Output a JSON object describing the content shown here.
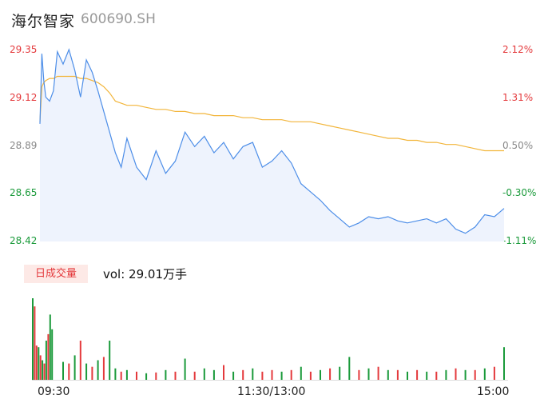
{
  "header": {
    "name": "海尔智家",
    "code": "600690.SH"
  },
  "price_axis": {
    "left_ticks": [
      "29.35",
      "29.12",
      "28.89",
      "28.65",
      "28.42"
    ],
    "right_ticks": [
      "2.12%",
      "1.31%",
      "0.50%",
      "-0.30%",
      "-1.11%"
    ],
    "tick_colors": [
      "#e4393c",
      "#e4393c",
      "#888888",
      "#1a9a3a",
      "#1a9a3a"
    ]
  },
  "volume": {
    "tag": "日成交量",
    "text": "vol: 29.01万手"
  },
  "x_ticks": [
    "09:30",
    "11:30/13:00",
    "15:00"
  ],
  "colors": {
    "price": "#4d8ee8",
    "avg": "#f2b53a",
    "up": "#e4393c",
    "down": "#1a9a3a",
    "area": "#eef3fd"
  },
  "chart_data": [
    {
      "type": "line",
      "title": "",
      "xlabel": "",
      "ylabel": "",
      "ylim": [
        28.42,
        29.35
      ],
      "x": [
        "09:30",
        "09:31",
        "09:32",
        "09:33",
        "09:35",
        "09:37",
        "09:39",
        "09:42",
        "09:45",
        "09:48",
        "09:51",
        "09:54",
        "09:57",
        "10:00",
        "10:03",
        "10:06",
        "10:09",
        "10:12",
        "10:15",
        "10:20",
        "10:25",
        "10:30",
        "10:35",
        "10:40",
        "10:45",
        "10:50",
        "10:55",
        "11:00",
        "11:05",
        "11:10",
        "11:15",
        "11:20",
        "11:25",
        "11:30",
        "13:05",
        "13:10",
        "13:15",
        "13:20",
        "13:25",
        "13:30",
        "13:35",
        "13:40",
        "13:45",
        "13:50",
        "13:55",
        "14:00",
        "14:05",
        "14:10",
        "14:15",
        "14:20",
        "14:25",
        "14:30",
        "14:35",
        "14:40",
        "14:45",
        "14:50",
        "14:55",
        "15:00"
      ],
      "series": [
        {
          "name": "",
          "values": [
            28.99,
            29.33,
            29.2,
            29.12,
            29.1,
            29.15,
            29.34,
            29.28,
            29.35,
            29.25,
            29.12,
            29.3,
            29.24,
            29.15,
            29.05,
            28.95,
            28.85,
            28.78,
            28.92,
            28.78,
            28.72,
            28.86,
            28.75,
            28.81,
            28.95,
            28.88,
            28.93,
            28.85,
            28.9,
            28.82,
            28.88,
            28.9,
            28.78,
            28.81,
            28.86,
            28.8,
            28.7,
            28.66,
            28.62,
            28.57,
            28.53,
            28.49,
            28.51,
            28.54,
            28.53,
            28.54,
            28.52,
            28.51,
            28.52,
            28.53,
            28.51,
            28.53,
            28.48,
            28.46,
            28.49,
            28.55,
            28.54,
            28.58
          ]
        },
        {
          "name": "",
          "values": [
            29.0,
            29.17,
            29.19,
            29.2,
            29.21,
            29.21,
            29.22,
            29.22,
            29.22,
            29.22,
            29.21,
            29.21,
            29.2,
            29.19,
            29.17,
            29.14,
            29.1,
            29.09,
            29.08,
            29.08,
            29.07,
            29.06,
            29.06,
            29.05,
            29.05,
            29.04,
            29.04,
            29.03,
            29.03,
            29.03,
            29.02,
            29.02,
            29.01,
            29.01,
            29.01,
            29.0,
            29.0,
            29.0,
            28.99,
            28.98,
            28.97,
            28.96,
            28.95,
            28.94,
            28.93,
            28.92,
            28.92,
            28.91,
            28.91,
            28.9,
            28.9,
            28.89,
            28.89,
            28.88,
            28.87,
            28.86,
            28.86,
            28.86
          ]
        }
      ]
    },
    {
      "type": "bar",
      "title": "",
      "xlabel": "",
      "ylabel": "",
      "categories": [
        "09:30",
        "09:31",
        "09:32",
        "09:33",
        "09:34",
        "09:35",
        "09:36",
        "09:37",
        "09:38",
        "09:39",
        "09:40",
        "09:42",
        "09:45",
        "09:48",
        "09:51",
        "09:54",
        "09:57",
        "10:00",
        "10:03",
        "10:06",
        "10:09",
        "10:12",
        "10:15",
        "10:20",
        "10:25",
        "10:30",
        "10:35",
        "10:40",
        "10:45",
        "10:50",
        "10:55",
        "11:00",
        "11:05",
        "11:10",
        "11:15",
        "11:20",
        "11:25",
        "11:30",
        "13:05",
        "13:10",
        "13:15",
        "13:20",
        "13:25",
        "13:30",
        "13:35",
        "13:40",
        "13:45",
        "13:50",
        "13:55",
        "14:00",
        "14:05",
        "14:10",
        "14:15",
        "14:20",
        "14:25",
        "14:30",
        "14:35",
        "14:40",
        "14:45",
        "14:50",
        "14:55",
        "15:00"
      ],
      "values": [
        100,
        90,
        42,
        40,
        30,
        24,
        20,
        48,
        56,
        80,
        62,
        22,
        20,
        30,
        48,
        20,
        16,
        24,
        28,
        48,
        14,
        10,
        12,
        10,
        8,
        9,
        12,
        10,
        26,
        10,
        14,
        12,
        18,
        10,
        12,
        14,
        10,
        12,
        10,
        12,
        16,
        10,
        12,
        14,
        16,
        28,
        12,
        14,
        16,
        12,
        12,
        10,
        12,
        10,
        10,
        12,
        14,
        12,
        12,
        14,
        16,
        40
      ],
      "directions": [
        "down",
        "up",
        "up",
        "down",
        "up",
        "down",
        "up",
        "down",
        "up",
        "down",
        "down",
        "down",
        "up",
        "down",
        "up",
        "down",
        "up",
        "down",
        "up",
        "down",
        "down",
        "up",
        "down",
        "up",
        "down",
        "up",
        "down",
        "up",
        "down",
        "up",
        "down",
        "down",
        "up",
        "down",
        "up",
        "down",
        "up",
        "up",
        "down",
        "up",
        "down",
        "up",
        "down",
        "up",
        "down",
        "down",
        "up",
        "down",
        "up",
        "down",
        "up",
        "down",
        "up",
        "down",
        "up",
        "down",
        "up",
        "down",
        "up",
        "down",
        "up",
        "down"
      ],
      "ylim": [
        0,
        100
      ]
    }
  ]
}
